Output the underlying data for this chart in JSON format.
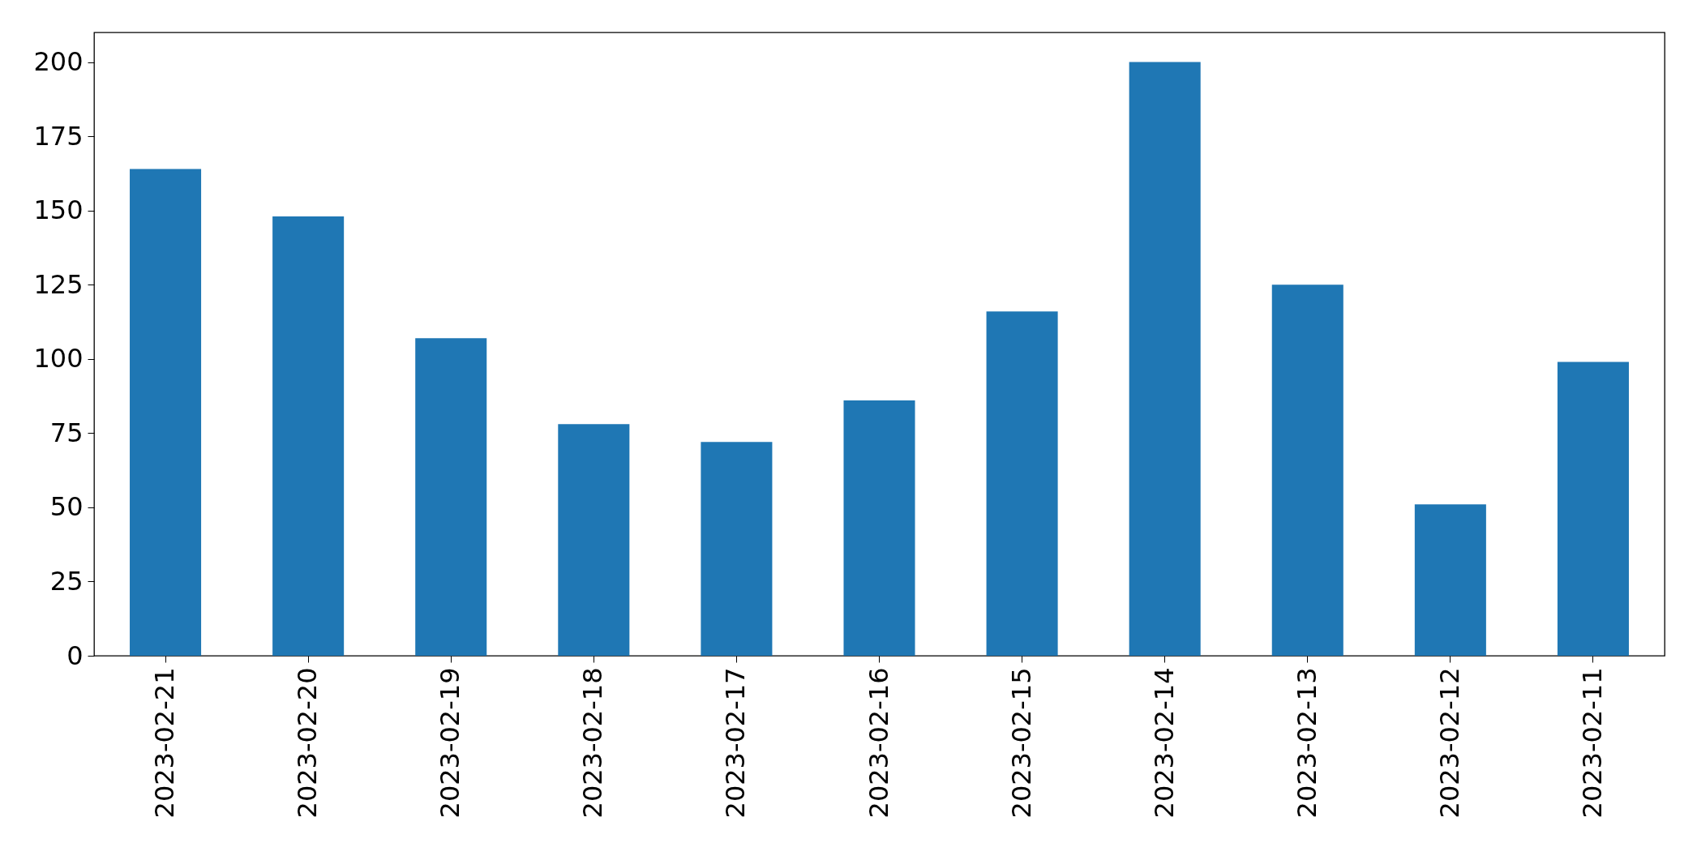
{
  "chart_data": {
    "type": "bar",
    "categories": [
      "2023-02-21",
      "2023-02-20",
      "2023-02-19",
      "2023-02-18",
      "2023-02-17",
      "2023-02-16",
      "2023-02-15",
      "2023-02-14",
      "2023-02-13",
      "2023-02-12",
      "2023-02-11"
    ],
    "values": [
      164,
      148,
      107,
      78,
      72,
      86,
      116,
      200,
      125,
      51,
      99
    ],
    "color": "#1f77b4",
    "ylim": [
      0,
      210
    ],
    "yticks": [
      0,
      25,
      50,
      75,
      100,
      125,
      150,
      175,
      200
    ],
    "grid": false
  }
}
